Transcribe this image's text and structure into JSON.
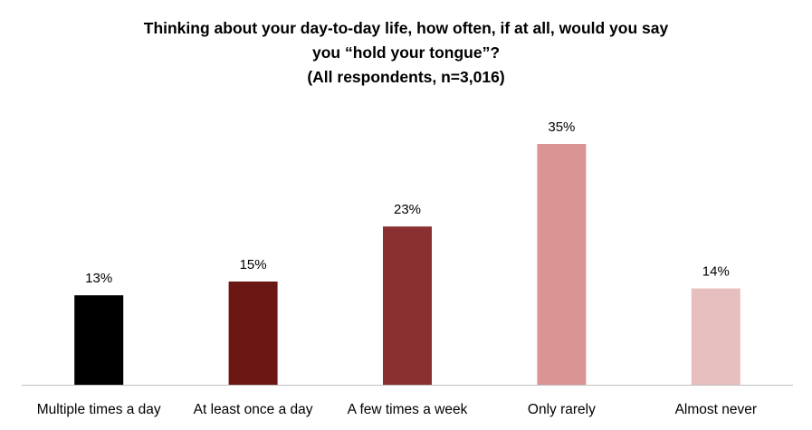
{
  "chart_data": {
    "type": "bar",
    "title_lines": [
      "Thinking about your day-to-day life, how often, if at all, would you say",
      "you “hold your tongue”?",
      "(All respondents, n=3,016)"
    ],
    "categories": [
      "Multiple times a day",
      "At least once a day",
      "A few times a week",
      "Only rarely",
      "Almost never"
    ],
    "values": [
      13,
      15,
      23,
      35,
      14
    ],
    "data_labels": [
      "13%",
      "15%",
      "23%",
      "35%",
      "14%"
    ],
    "colors": [
      "#000000",
      "#6b1714",
      "#8b3030",
      "#d99493",
      "#e8bfbf"
    ],
    "xlabel": "",
    "ylabel": "",
    "ylim": [
      0,
      40
    ],
    "grid": false,
    "legend": "none"
  }
}
